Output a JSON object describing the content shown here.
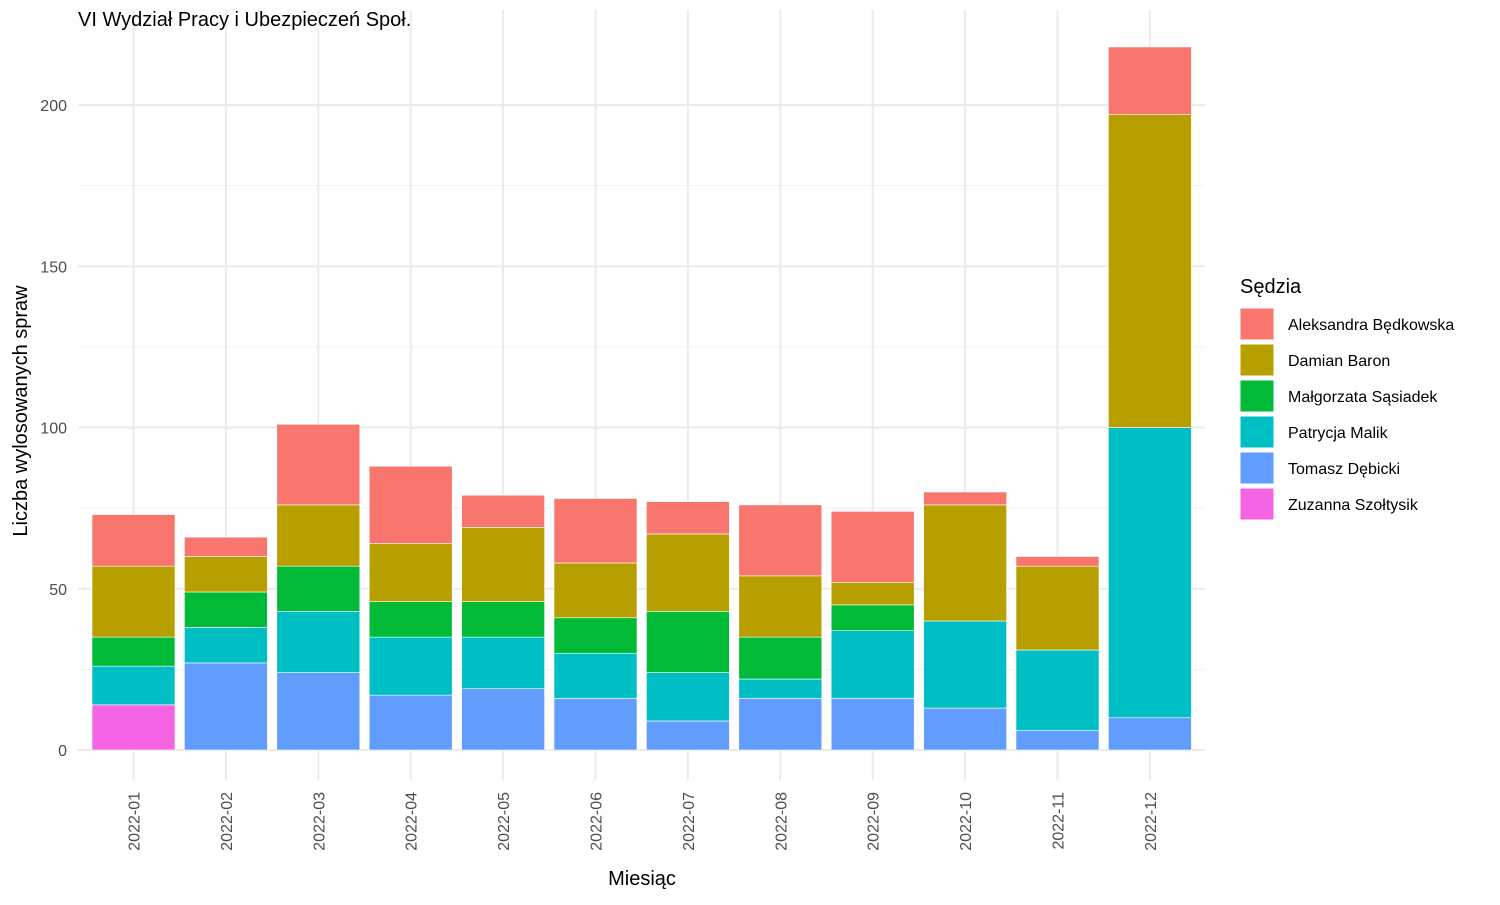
{
  "chart_data": {
    "type": "bar",
    "stacked": true,
    "title": "VI Wydział Pracy i Ubezpieczeń Społ.",
    "xlabel": "Miesiąc",
    "ylabel": "Liczba wylosowanych spraw",
    "ylim": [
      0,
      220
    ],
    "yticks": [
      0,
      50,
      100,
      150,
      200
    ],
    "grid": true,
    "legend_title": "Sędzia",
    "legend_position": "right",
    "categories": [
      "2022-01",
      "2022-02",
      "2022-03",
      "2022-04",
      "2022-05",
      "2022-06",
      "2022-07",
      "2022-08",
      "2022-09",
      "2022-10",
      "2022-11",
      "2022-12"
    ],
    "series": [
      {
        "name": "Aleksandra Będkowska",
        "color": "#F8766D",
        "values": [
          16,
          6,
          25,
          24,
          10,
          20,
          10,
          22,
          22,
          4,
          3,
          21
        ]
      },
      {
        "name": "Damian Baron",
        "color": "#B79F00",
        "values": [
          22,
          11,
          19,
          18,
          23,
          17,
          24,
          19,
          7,
          36,
          26,
          97
        ]
      },
      {
        "name": "Małgorzata Sąsiadek",
        "color": "#00BA38",
        "values": [
          9,
          11,
          14,
          11,
          11,
          11,
          19,
          13,
          8,
          0,
          0,
          0
        ]
      },
      {
        "name": "Patrycja Malik",
        "color": "#00BFC4",
        "values": [
          12,
          11,
          19,
          18,
          16,
          14,
          15,
          6,
          21,
          27,
          25,
          90
        ]
      },
      {
        "name": "Tomasz Dębicki",
        "color": "#619CFF",
        "values": [
          0,
          27,
          24,
          17,
          19,
          16,
          9,
          16,
          16,
          13,
          6,
          10
        ]
      },
      {
        "name": "Zuzanna Szołtysik",
        "color": "#F564E3",
        "values": [
          14,
          0,
          0,
          0,
          0,
          0,
          0,
          0,
          0,
          0,
          0,
          0
        ]
      }
    ]
  }
}
